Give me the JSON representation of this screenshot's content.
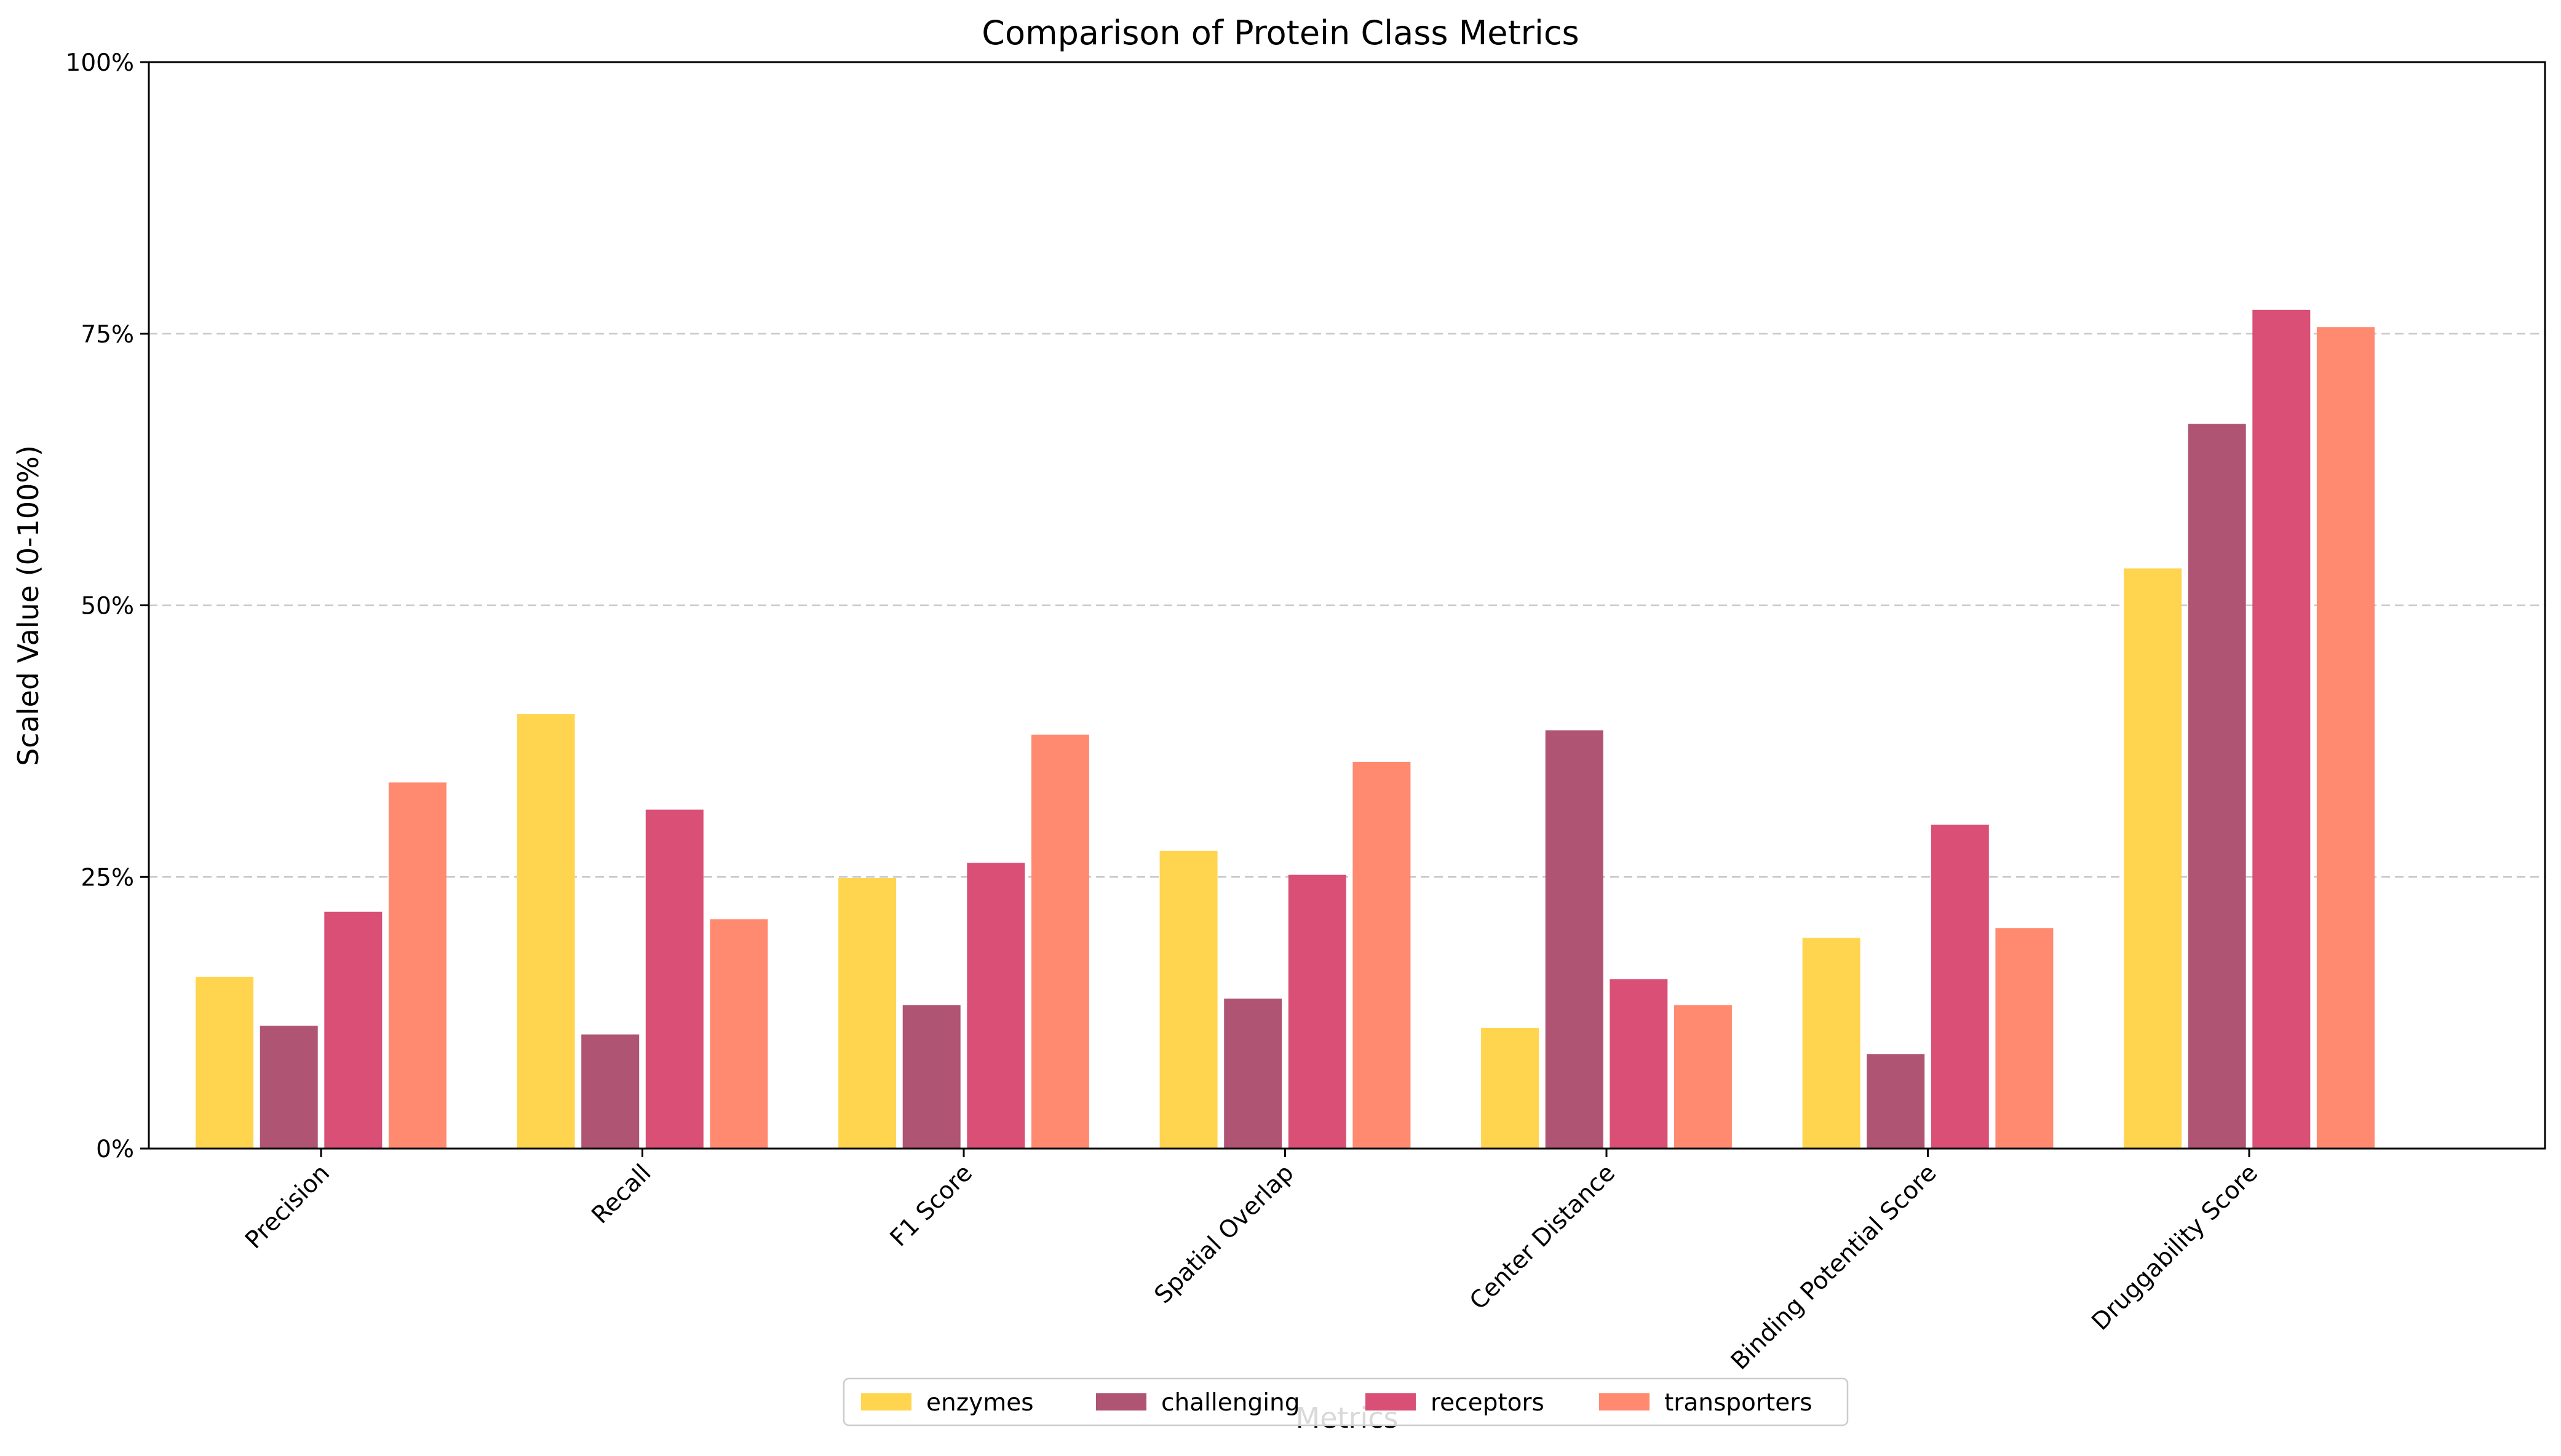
{
  "chart_data": {
    "type": "bar",
    "title": "Comparison of Protein Class Metrics",
    "xlabel": "Metrics",
    "ylabel": "Scaled Value (0-100%)",
    "ylim": [
      0,
      100
    ],
    "yticks": [
      {
        "value": 0,
        "label": "0%"
      },
      {
        "value": 25,
        "label": "25%"
      },
      {
        "value": 50,
        "label": "50%"
      },
      {
        "value": 75,
        "label": "75%"
      },
      {
        "value": 100,
        "label": "100%"
      }
    ],
    "grid": "y-dashed",
    "legend_position": "bottom-center",
    "categories": [
      "Precision",
      "Recall",
      "F1 Score",
      "Spatial Overlap",
      "Center Distance",
      "Binding Potential Score",
      "Druggability Score"
    ],
    "series": [
      {
        "name": "enzymes",
        "color": "#FFD54F",
        "values": [
          15.8,
          40.0,
          24.9,
          27.4,
          11.1,
          19.4,
          53.4
        ]
      },
      {
        "name": "challenging",
        "color": "#B05473",
        "values": [
          11.3,
          10.5,
          13.2,
          13.8,
          38.5,
          8.7,
          66.7
        ]
      },
      {
        "name": "receptors",
        "color": "#D94F76",
        "values": [
          21.8,
          31.2,
          26.3,
          25.2,
          15.6,
          29.8,
          77.2
        ]
      },
      {
        "name": "transporters",
        "color": "#FF8A70",
        "values": [
          33.7,
          21.1,
          38.1,
          35.6,
          13.2,
          20.3,
          75.6
        ]
      }
    ]
  }
}
